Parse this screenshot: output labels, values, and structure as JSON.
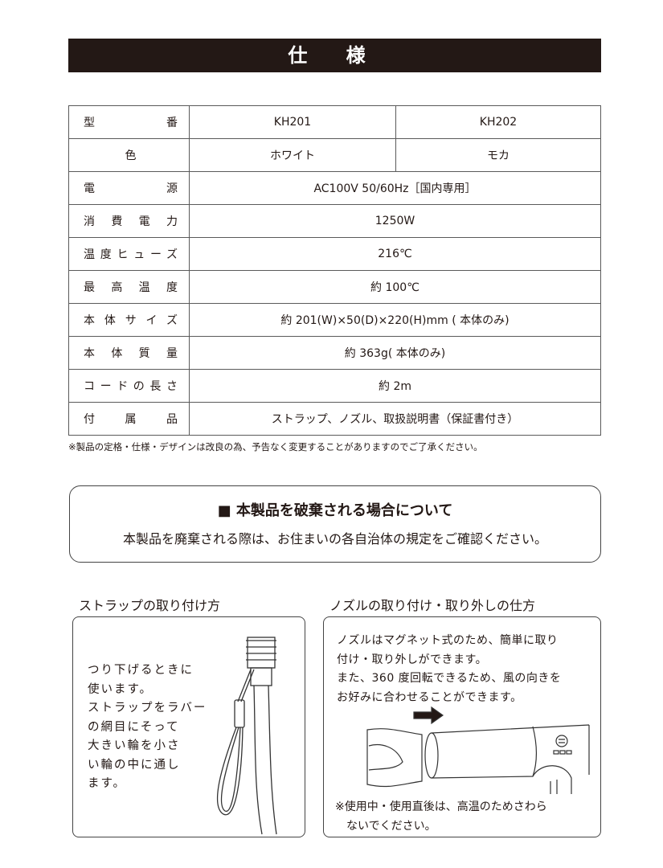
{
  "title": "仕 様",
  "spec": {
    "rows": [
      {
        "label": "型番",
        "v1": "KH201",
        "v2": "KH202"
      },
      {
        "label": "色",
        "v1": "ホワイト",
        "v2": "モカ"
      },
      {
        "label": "電源",
        "value": "AC100V  50/60Hz［国内専用］"
      },
      {
        "label": "消費電力",
        "value": "1250W"
      },
      {
        "label": "温度ヒューズ",
        "value": "216℃"
      },
      {
        "label": "最高温度",
        "value": "約 100℃"
      },
      {
        "label": "本体サイズ",
        "value": "約 201(W)×50(D)×220(H)mm ( 本体のみ)"
      },
      {
        "label": "本体質量",
        "value": "約 363g( 本体のみ)"
      },
      {
        "label": "コードの長さ",
        "value": "約 2m"
      },
      {
        "label": "付属品",
        "value": "ストラップ、ノズル、取扱説明書（保証書付き）"
      }
    ],
    "note": "※製品の定格・仕様・デザインは改良の為、予告なく変更することがありますのでご了承ください。"
  },
  "disposal": {
    "heading": "■ 本製品を破棄される場合について",
    "text": "本製品を廃棄される際は、お住まいの各自治体の規定をご確認ください。"
  },
  "strap": {
    "heading": "ストラップの取り付け方",
    "lines": [
      "つり下げるときに",
      "使います。",
      "ストラップをラバー",
      "の網目にそって",
      "大きい輪を小さ",
      "い輪の中に通し",
      "ます。"
    ]
  },
  "nozzle": {
    "heading": "ノズルの取り付け・取り外しの仕方",
    "lines": [
      "ノズルはマグネット式のため、簡単に取り",
      "付け・取り外しができます。",
      "また、360 度回転できるため、風の向きを",
      "お好みに合わせることができます。"
    ],
    "warning": [
      "※使用中・使用直後は、高温のためさわら",
      "　ないでください。"
    ]
  }
}
